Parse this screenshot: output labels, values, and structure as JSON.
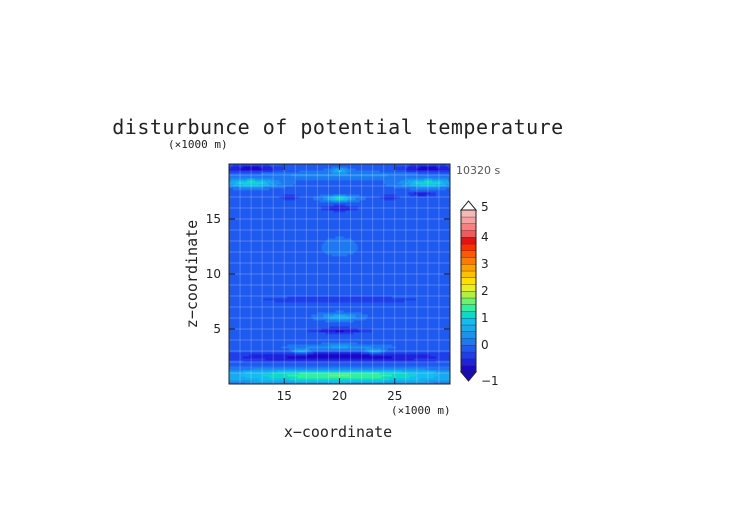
{
  "chart_data": {
    "type": "heatmap",
    "title": "disturbunce of potential temperature",
    "xlabel": "x−coordinate",
    "ylabel": "z−coordinate",
    "x_unit": "(×1000 m)",
    "y_unit": "(×1000 m)",
    "time_label": "10320 s",
    "xlim": [
      10,
      30
    ],
    "ylim": [
      0,
      20
    ],
    "x_ticks": [
      15,
      20,
      25
    ],
    "x_tick_labels": [
      "15",
      "20",
      "25"
    ],
    "y_ticks": [
      5,
      10,
      15
    ],
    "y_tick_labels": [
      "5",
      "10",
      "15"
    ],
    "grid": true,
    "colorbar": {
      "min": -1,
      "max": 5,
      "step": 0.25,
      "ticks": [
        -1,
        0,
        1,
        2,
        3,
        4,
        5
      ],
      "tick_labels": [
        "−1",
        "0",
        "1",
        "2",
        "3",
        "4",
        "5"
      ],
      "extend": "both",
      "colors": [
        "#1a08c8",
        "#1e22dc",
        "#1f3eea",
        "#1f5af0",
        "#1e78f2",
        "#1a92ee",
        "#16aaf0",
        "#12bdf0",
        "#10d8c8",
        "#30f0a0",
        "#70f070",
        "#b0f040",
        "#e8f020",
        "#ffe000",
        "#ffc000",
        "#ffa000",
        "#ff7a00",
        "#ff5800",
        "#ff3000",
        "#e81010",
        "#f05a5a",
        "#f88080",
        "#f8a0a0",
        "#f8b8b8"
      ]
    },
    "background_level": -0.05,
    "features": [
      {
        "x": 20,
        "z": 0.6,
        "sx": 11,
        "sz": 0.55,
        "value": 1.3
      },
      {
        "x": 20,
        "z": 1.05,
        "sx": 11,
        "sz": 0.35,
        "value": 0.7
      },
      {
        "x": 20,
        "z": 2.5,
        "sx": 11,
        "sz": 0.45,
        "value": -0.85
      },
      {
        "x": 20,
        "z": 3.35,
        "sx": 3.5,
        "sz": 0.25,
        "value": 0.6
      },
      {
        "x": 16.5,
        "z": 3.0,
        "sx": 0.8,
        "sz": 0.2,
        "value": 0.95
      },
      {
        "x": 23.2,
        "z": 3.0,
        "sx": 0.8,
        "sz": 0.2,
        "value": 0.95
      },
      {
        "x": 20,
        "z": 4.9,
        "sx": 2.6,
        "sz": 0.25,
        "value": -0.8
      },
      {
        "x": 20,
        "z": 6.15,
        "sx": 1.6,
        "sz": 0.3,
        "value": 0.75
      },
      {
        "x": 20,
        "z": 7.7,
        "sx": 11,
        "sz": 0.45,
        "value": -0.3
      },
      {
        "x": 20,
        "z": 12.5,
        "sx": 1.3,
        "sz": 0.7,
        "value": 0.25
      },
      {
        "x": 20,
        "z": 16.0,
        "sx": 1.4,
        "sz": 0.25,
        "value": -0.8
      },
      {
        "x": 20,
        "z": 16.9,
        "sx": 1.3,
        "sz": 0.25,
        "value": 1.3
      },
      {
        "x": 12.0,
        "z": 18.3,
        "sx": 2.2,
        "sz": 0.35,
        "value": 1.3
      },
      {
        "x": 28.0,
        "z": 18.3,
        "sx": 2.2,
        "sz": 0.35,
        "value": 1.3
      },
      {
        "x": 20,
        "z": 19.0,
        "sx": 11,
        "sz": 0.3,
        "value": 0.35
      },
      {
        "x": 12.0,
        "z": 19.6,
        "sx": 2.5,
        "sz": 0.3,
        "value": -0.9
      },
      {
        "x": 28.0,
        "z": 19.6,
        "sx": 2.5,
        "sz": 0.3,
        "value": -0.9
      },
      {
        "x": 20,
        "z": 19.45,
        "sx": 0.8,
        "sz": 0.2,
        "value": 0.9
      },
      {
        "x": 15.5,
        "z": 17.0,
        "sx": 0.8,
        "sz": 0.2,
        "value": -0.7
      },
      {
        "x": 24.5,
        "z": 17.0,
        "sx": 0.8,
        "sz": 0.2,
        "value": -0.7
      },
      {
        "x": 27.5,
        "z": 17.3,
        "sx": 1.2,
        "sz": 0.2,
        "value": -0.7
      }
    ]
  }
}
